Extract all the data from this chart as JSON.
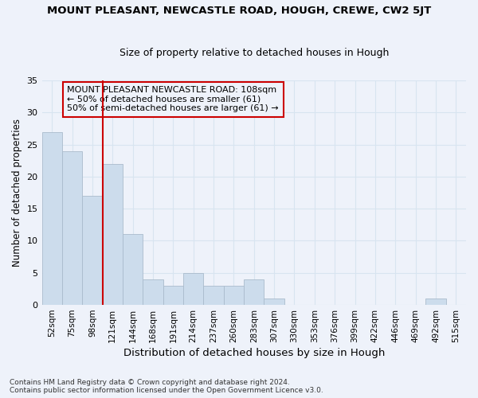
{
  "title": "MOUNT PLEASANT, NEWCASTLE ROAD, HOUGH, CREWE, CW2 5JT",
  "subtitle": "Size of property relative to detached houses in Hough",
  "xlabel": "Distribution of detached houses by size in Hough",
  "ylabel": "Number of detached properties",
  "footnote1": "Contains HM Land Registry data © Crown copyright and database right 2024.",
  "footnote2": "Contains public sector information licensed under the Open Government Licence v3.0.",
  "annotation_line1": "MOUNT PLEASANT NEWCASTLE ROAD: 108sqm",
  "annotation_line2": "← 50% of detached houses are smaller (61)",
  "annotation_line3": "50% of semi-detached houses are larger (61) →",
  "bar_color": "#ccdcec",
  "bar_edge_color": "#aabbcc",
  "grid_color": "#d8e4f0",
  "vline_color": "#cc0000",
  "annotation_box_color": "#cc0000",
  "categories": [
    "52sqm",
    "75sqm",
    "98sqm",
    "121sqm",
    "144sqm",
    "168sqm",
    "191sqm",
    "214sqm",
    "237sqm",
    "260sqm",
    "283sqm",
    "307sqm",
    "330sqm",
    "353sqm",
    "376sqm",
    "399sqm",
    "422sqm",
    "446sqm",
    "469sqm",
    "492sqm",
    "515sqm"
  ],
  "values": [
    27,
    24,
    17,
    22,
    11,
    4,
    3,
    5,
    3,
    3,
    4,
    1,
    0,
    0,
    0,
    0,
    0,
    0,
    0,
    1,
    0
  ],
  "vline_position": 2.5,
  "ylim": [
    0,
    35
  ],
  "yticks": [
    0,
    5,
    10,
    15,
    20,
    25,
    30,
    35
  ],
  "background_color": "#eef2fa",
  "title_fontsize": 9.5,
  "subtitle_fontsize": 9.0,
  "ylabel_fontsize": 8.5,
  "xlabel_fontsize": 9.5,
  "tick_fontsize": 8.0,
  "xtick_fontsize": 7.5
}
